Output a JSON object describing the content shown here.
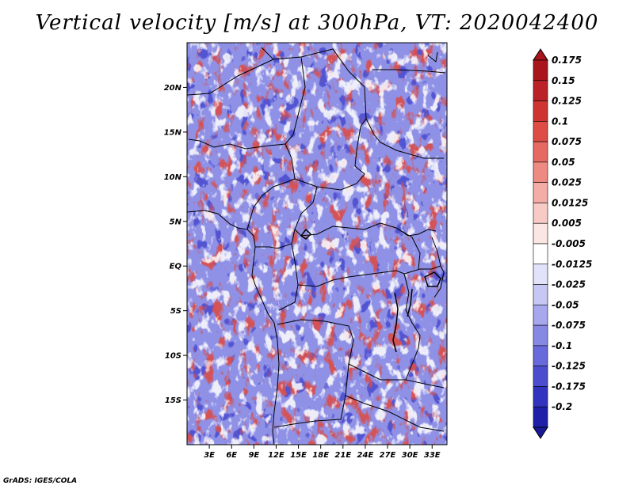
{
  "title": "Vertical velocity [m/s] at 300hPa, VT: 2020042400",
  "credit": "GrADS: IGES/COLA",
  "map": {
    "lon_range": [
      0,
      35
    ],
    "lat_range": [
      -20,
      25
    ],
    "lat_ticks": [
      {
        "label": "20N",
        "value": 20
      },
      {
        "label": "15N",
        "value": 15
      },
      {
        "label": "10N",
        "value": 10
      },
      {
        "label": "5N",
        "value": 5
      },
      {
        "label": "EQ",
        "value": 0
      },
      {
        "label": "5S",
        "value": -5
      },
      {
        "label": "10S",
        "value": -10
      },
      {
        "label": "15S",
        "value": -15
      }
    ],
    "lon_ticks": [
      {
        "label": "3E",
        "value": 3
      },
      {
        "label": "6E",
        "value": 6
      },
      {
        "label": "9E",
        "value": 9
      },
      {
        "label": "12E",
        "value": 12
      },
      {
        "label": "15E",
        "value": 15
      },
      {
        "label": "18E",
        "value": 18
      },
      {
        "label": "21E",
        "value": 21
      },
      {
        "label": "24E",
        "value": 24
      },
      {
        "label": "27E",
        "value": 27
      },
      {
        "label": "30E",
        "value": 30
      },
      {
        "label": "33E",
        "value": 33
      }
    ]
  },
  "colorbar": {
    "levels": [
      {
        "label": "0.175",
        "color": "#a8151c"
      },
      {
        "label": "0.15",
        "color": "#bb2227"
      },
      {
        "label": "0.125",
        "color": "#cf3530"
      },
      {
        "label": "0.1",
        "color": "#dd4c45"
      },
      {
        "label": "0.075",
        "color": "#e56a62"
      },
      {
        "label": "0.05",
        "color": "#ed8b83"
      },
      {
        "label": "0.025",
        "color": "#f4aca6"
      },
      {
        "label": "0.0125",
        "color": "#f8cac5"
      },
      {
        "label": "0.005",
        "color": "#fce6e3"
      },
      {
        "label": "-0.005",
        "color": "#ffffff"
      },
      {
        "label": "-0.0125",
        "color": "#e2e3fa"
      },
      {
        "label": "-0.025",
        "color": "#c6c7f3"
      },
      {
        "label": "-0.05",
        "color": "#a6a7ec"
      },
      {
        "label": "-0.075",
        "color": "#8788e4"
      },
      {
        "label": "-0.1",
        "color": "#6869da"
      },
      {
        "label": "-0.125",
        "color": "#4b4dce"
      },
      {
        "label": "-0.175",
        "color": "#3233bf"
      },
      {
        "label": "-0.2",
        "color": "#1f1fa8"
      }
    ],
    "over_color": "#a8151c",
    "under_color": "#1a1a96"
  }
}
